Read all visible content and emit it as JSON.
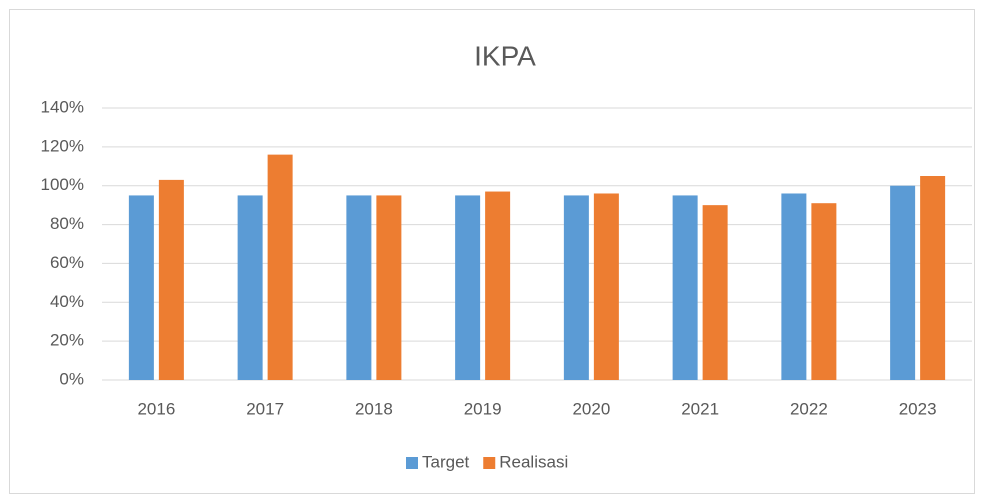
{
  "chart_data": {
    "type": "bar",
    "title": "IKPA",
    "categories": [
      "2016",
      "2017",
      "2018",
      "2019",
      "2020",
      "2021",
      "2022",
      "2023"
    ],
    "series": [
      {
        "name": "Target",
        "color": "#5b9bd5",
        "values": [
          95,
          95,
          95,
          95,
          95,
          95,
          96,
          100
        ]
      },
      {
        "name": "Realisasi",
        "color": "#ed7d31",
        "values": [
          103,
          116,
          95,
          97,
          96,
          90,
          91,
          105
        ]
      }
    ],
    "ylim": [
      0,
      140
    ],
    "yticks": [
      {
        "value": 0,
        "label": "0%"
      },
      {
        "value": 20,
        "label": "20%"
      },
      {
        "value": 40,
        "label": "40%"
      },
      {
        "value": 60,
        "label": "60%"
      },
      {
        "value": 80,
        "label": "80%"
      },
      {
        "value": 100,
        "label": "100%"
      },
      {
        "value": 120,
        "label": "120%"
      },
      {
        "value": 140,
        "label": "140%"
      }
    ],
    "grid": true,
    "legend": "bottom"
  }
}
